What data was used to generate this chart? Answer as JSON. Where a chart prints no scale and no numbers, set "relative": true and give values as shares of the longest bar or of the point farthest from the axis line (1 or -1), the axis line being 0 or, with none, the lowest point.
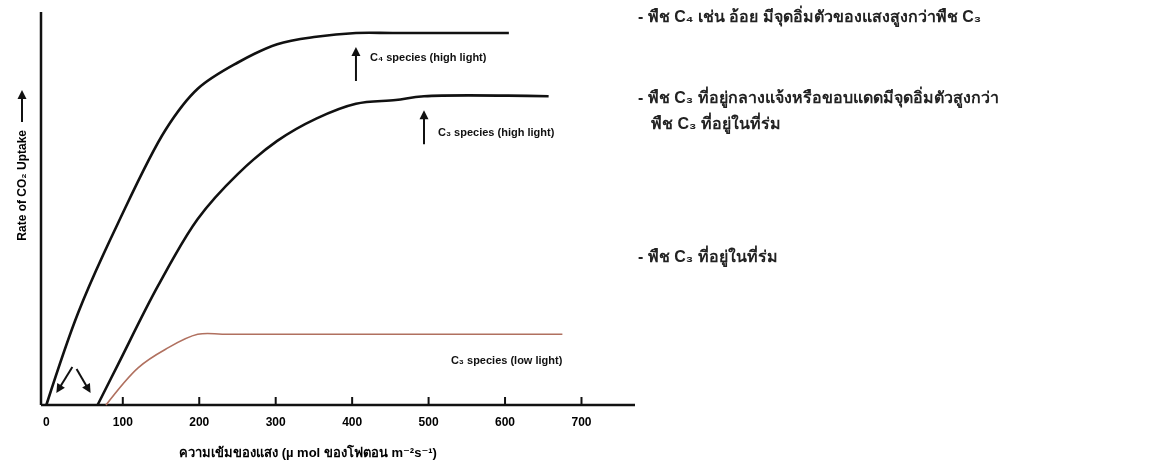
{
  "chart_data": {
    "type": "line",
    "relative": true,
    "xlabel": "ความเข้มของแสง (µ mol ของโฟตอน m⁻²s⁻¹)",
    "ylabel": "Rate of CO₂ Uptake",
    "xlim": [
      -7,
      770
    ],
    "xticks": [
      0,
      100,
      200,
      300,
      400,
      500,
      600,
      700
    ],
    "grid": false,
    "marker": "none",
    "line_style": "solid",
    "series": [
      {
        "name": "C₄ species (high light)",
        "color": "#111111",
        "x": [
          0,
          42,
          94,
          156,
          198,
          250,
          302,
          353,
          405,
          457,
          605
        ],
        "values": [
          0,
          0.25,
          0.49,
          0.74,
          0.85,
          0.92,
          0.97,
          0.99,
          1,
          1,
          1
        ]
      },
      {
        "name": "C₃ species (high light)",
        "color": "#111111",
        "x": [
          67,
          94,
          146,
          198,
          250,
          302,
          353,
          405,
          457,
          494,
          657
        ],
        "values": [
          0,
          0.11,
          0.32,
          0.5,
          0.62,
          0.71,
          0.77,
          0.81,
          0.82,
          0.83,
          0.83
        ]
      },
      {
        "name": "C₃ species (low light)",
        "color": "#b0705f",
        "x": [
          78,
          120,
          156,
          198,
          239,
          675
        ],
        "values": [
          0,
          0.1,
          0.15,
          0.19,
          0.19,
          0.19
        ]
      }
    ],
    "annotations": [
      "- พืช C₄ เช่น อ้อย มีจุดอิ่มตัวของแสงสูงกว่าพืช C₃",
      "- พืช C₃ ที่อยู่กลางแจ้งหรือขอบแดดมีจุดอิ่มตัวสูงกว่า\nพืช C₃ ที่อยู่ในที่ร่ม",
      "- พืช C₃ ที่อยู่ในที่ร่ม"
    ]
  }
}
